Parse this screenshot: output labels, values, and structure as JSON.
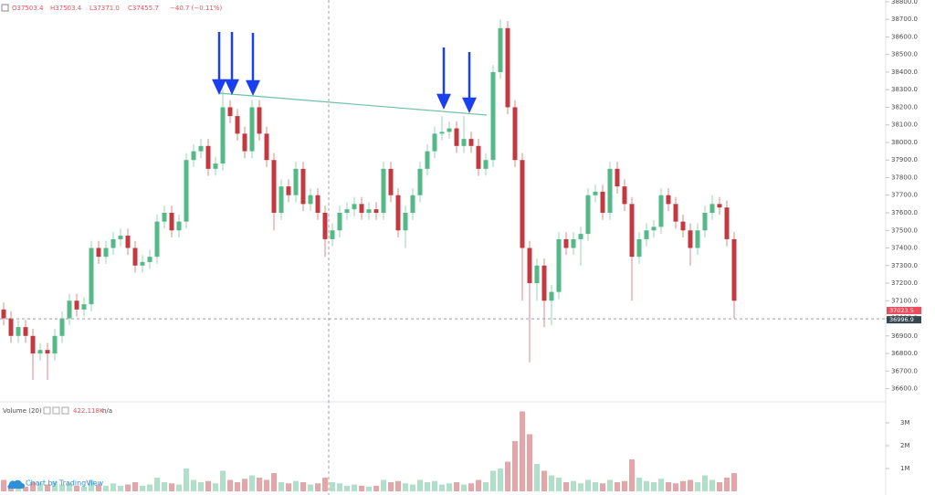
{
  "chart_data": {
    "type": "candlestick",
    "header": [
      "O37503.4",
      "H37503.4",
      "L37371.0",
      "C37455.7",
      "−40.7 (−0.11%)"
    ],
    "colors": {
      "up": "#53b987",
      "down": "#c4393f"
    },
    "open": [
      37050,
      37000,
      36900,
      36950,
      36900,
      36800,
      36820,
      36800,
      36900,
      37000,
      37100,
      37050,
      37080,
      37400,
      37350,
      37400,
      37450,
      37470,
      37400,
      37300,
      37320,
      37350,
      37550,
      37600,
      37500,
      37550,
      37900,
      37950,
      37980,
      37850,
      37880,
      38200,
      38150,
      38050,
      37950,
      38200,
      38050,
      37900,
      37600,
      37750,
      37700,
      37850,
      37650,
      37700,
      37600,
      37450,
      37500,
      37600,
      37620,
      37650,
      37600,
      37620,
      37600,
      37850,
      37700,
      37500,
      37600,
      37700,
      37850,
      37950,
      38050,
      38060,
      38080,
      37980,
      38020,
      37980,
      37850,
      37900,
      38400,
      38650,
      38200,
      37900,
      37400,
      37200,
      37300,
      37100,
      37150,
      37450,
      37400,
      37450,
      37480,
      37700,
      37720,
      37600,
      37850,
      37750,
      37650,
      37350,
      37450,
      37500,
      37520,
      37700,
      37650,
      37550,
      37500,
      37400,
      37500,
      37600,
      37650,
      37630,
      37450
    ],
    "high": [
      37090,
      37040,
      36990,
      36990,
      36940,
      36860,
      36860,
      36940,
      37040,
      37140,
      37140,
      37120,
      37440,
      37440,
      37440,
      37490,
      37510,
      37510,
      37440,
      37360,
      37390,
      37590,
      37640,
      37640,
      37590,
      37940,
      37990,
      38020,
      38020,
      37920,
      38300,
      38240,
      38190,
      38090,
      38240,
      38240,
      38090,
      37940,
      37790,
      37790,
      37890,
      37890,
      37740,
      37740,
      37640,
      37540,
      37640,
      37660,
      37690,
      37690,
      37660,
      37660,
      37890,
      37890,
      37740,
      37640,
      37740,
      37890,
      37990,
      38090,
      38150,
      38120,
      38120,
      38150,
      38060,
      38020,
      37940,
      38440,
      38700,
      38690,
      38240,
      37940,
      37440,
      37340,
      37340,
      37190,
      37490,
      37490,
      37490,
      37520,
      37740,
      37760,
      37760,
      37890,
      37890,
      37790,
      37690,
      37490,
      37540,
      37560,
      37740,
      37740,
      37690,
      37590,
      37540,
      37540,
      37640,
      37700,
      37690,
      37670,
      37490
    ],
    "low": [
      36960,
      36860,
      36860,
      36860,
      36650,
      36760,
      36650,
      36760,
      36860,
      36960,
      37010,
      37010,
      37040,
      37310,
      37310,
      37360,
      37410,
      37360,
      37260,
      37260,
      37280,
      37310,
      37510,
      37460,
      37460,
      37510,
      37860,
      37910,
      37810,
      37810,
      37840,
      38110,
      38010,
      37910,
      37910,
      38010,
      37860,
      37500,
      37560,
      37660,
      37660,
      37610,
      37610,
      37560,
      37350,
      37410,
      37460,
      37560,
      37580,
      37560,
      37560,
      37560,
      37560,
      37660,
      37460,
      37400,
      37560,
      37660,
      37810,
      37910,
      38010,
      38020,
      37940,
      37940,
      37940,
      37810,
      37810,
      37860,
      38360,
      38160,
      37860,
      37100,
      36750,
      37100,
      36950,
      36960,
      37110,
      37360,
      37360,
      37300,
      37440,
      37660,
      37560,
      37560,
      37710,
      37610,
      37100,
      37310,
      37410,
      37460,
      37480,
      37610,
      37510,
      37460,
      37300,
      37360,
      37460,
      37560,
      37590,
      37410,
      37000
    ],
    "close": [
      37000,
      36900,
      36950,
      36900,
      36800,
      36820,
      36800,
      36900,
      37000,
      37100,
      37050,
      37080,
      37400,
      37350,
      37400,
      37450,
      37470,
      37400,
      37300,
      37320,
      37350,
      37550,
      37600,
      37500,
      37550,
      37900,
      37950,
      37980,
      37850,
      37880,
      38200,
      38150,
      38050,
      37950,
      38200,
      38050,
      37900,
      37600,
      37750,
      37700,
      37850,
      37650,
      37700,
      37600,
      37450,
      37500,
      37600,
      37620,
      37650,
      37600,
      37620,
      37600,
      37850,
      37700,
      37500,
      37600,
      37700,
      37850,
      37950,
      38050,
      38060,
      38080,
      37980,
      38020,
      37980,
      37850,
      37900,
      38400,
      38650,
      38200,
      37900,
      37400,
      37200,
      37300,
      37100,
      37150,
      37450,
      37400,
      37450,
      37480,
      37700,
      37720,
      37600,
      37850,
      37750,
      37650,
      37350,
      37450,
      37500,
      37520,
      37700,
      37650,
      37550,
      37500,
      37400,
      37500,
      37600,
      37650,
      37630,
      37450,
      37100
    ],
    "ylim": [
      36525,
      38810
    ],
    "yticks": [
      {
        "value": 38800,
        "label": "38800.0"
      },
      {
        "value": 38700,
        "label": "38700.0"
      },
      {
        "value": 38600,
        "label": "38600.0"
      },
      {
        "value": 38500,
        "label": "38500.0"
      },
      {
        "value": 38400,
        "label": "38400.0"
      },
      {
        "value": 38300,
        "label": "38300.0"
      },
      {
        "value": 38200,
        "label": "38200.0"
      },
      {
        "value": 38100,
        "label": "38100.0"
      },
      {
        "value": 38000,
        "label": "38000.0"
      },
      {
        "value": 37900,
        "label": "37900.0"
      },
      {
        "value": 37800,
        "label": "37800.0"
      },
      {
        "value": 37700,
        "label": "37700.0"
      },
      {
        "value": 37600,
        "label": "37600.0"
      },
      {
        "value": 37500,
        "label": "37500.0"
      },
      {
        "value": 37400,
        "label": "37400.0"
      },
      {
        "value": 37300,
        "label": "37300.0"
      },
      {
        "value": 37200,
        "label": "37200.0"
      },
      {
        "value": 37100,
        "label": "37100.0"
      },
      {
        "value": 37000,
        "label": "37000.0"
      },
      {
        "value": 36900,
        "label": "36900.0"
      },
      {
        "value": 36800,
        "label": "36800.0"
      },
      {
        "value": 36700,
        "label": "36700.0"
      },
      {
        "value": 36600,
        "label": "36600.0"
      }
    ],
    "price_labels": [
      {
        "value": 37023.5,
        "color": "#eb4d5c"
      },
      {
        "value": 36996.9,
        "color": "#37474f"
      }
    ],
    "volume": {
      "title": "Volume (20)",
      "value_text": "422.118K",
      "status": "n/a",
      "values": [
        500000,
        300000,
        250000,
        200000,
        400000,
        350000,
        300000,
        450000,
        300000,
        350000,
        250000,
        200000,
        500000,
        300000,
        250000,
        350000,
        250000,
        300000,
        400000,
        250000,
        300000,
        600000,
        400000,
        350000,
        300000,
        1000000,
        500000,
        400000,
        450000,
        350000,
        900000,
        500000,
        400000,
        550000,
        700000,
        600000,
        500000,
        800000,
        400000,
        350000,
        450000,
        400000,
        300000,
        350000,
        600000,
        400000,
        350000,
        250000,
        300000,
        250000,
        200000,
        250000,
        500000,
        400000,
        450000,
        350000,
        300000,
        500000,
        400000,
        450000,
        300000,
        350000,
        400000,
        300000,
        350000,
        500000,
        400000,
        900000,
        1000000,
        1300000,
        2200000,
        3500000,
        2500000,
        1200000,
        900000,
        700000,
        600000,
        400000,
        450000,
        350000,
        500000,
        400000,
        350000,
        500000,
        400000,
        450000,
        1400000,
        600000,
        450000,
        400000,
        550000,
        400000,
        350000,
        450000,
        500000,
        400000,
        700000,
        500000,
        400000,
        600000,
        800000
      ],
      "ylim": [
        0,
        3800000
      ],
      "yticks": [
        {
          "value": 3000000,
          "label": "3M"
        },
        {
          "value": 2000000,
          "label": "2M"
        },
        {
          "value": 1000000,
          "label": "1M"
        }
      ]
    },
    "credit": "Chart by TradingView"
  }
}
